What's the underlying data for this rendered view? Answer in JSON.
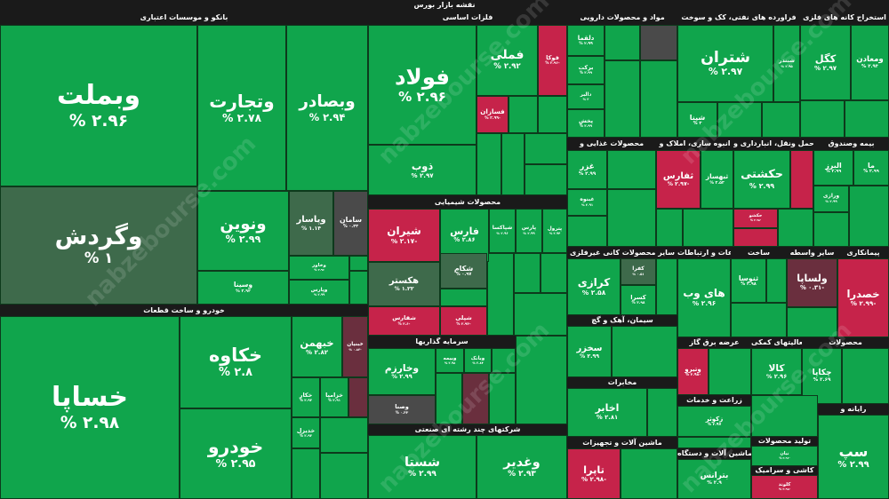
{
  "header": {
    "title": "نقشه بازار بورس"
  },
  "watermark": "nabzebourse.com",
  "sectors": [
    {
      "name": "بانکو و موسسات اعتباری",
      "tiles": [
        {
          "name": "وبملت",
          "change": "۲.۹۶ %"
        },
        {
          "name": "وگردش",
          "change": "۱ %"
        },
        {
          "name": "وتجارت",
          "change": "۲.۷۸ %"
        },
        {
          "name": "وبصادر",
          "change": "۲.۹۴ %"
        },
        {
          "name": "ونوین",
          "change": "۲.۹۹ %"
        },
        {
          "name": "وسینا",
          "change": "۲.۹۳ %"
        },
        {
          "name": "وپاسار",
          "change": "۱.۱۴ %"
        },
        {
          "name": "سامان",
          "change": "۰.۴۳ %"
        },
        {
          "name": "وخاور",
          "change": "۲.۹۶ %"
        },
        {
          "name": "وپارس",
          "change": "۲.۹۹ %"
        }
      ]
    },
    {
      "name": "خودرو و ساخت قطعات",
      "tiles": [
        {
          "name": "خساپا",
          "change": "۲.۹۸ %"
        },
        {
          "name": "خکاوه",
          "change": "۲.۸ %"
        },
        {
          "name": "خودرو",
          "change": "۲.۹۵ %"
        },
        {
          "name": "خبهمن",
          "change": "۲.۸۲ %"
        },
        {
          "name": "خبنیان",
          "change": "-۰.۸۳ %"
        },
        {
          "name": "خکار",
          "change": "۲.۹۳ %"
        },
        {
          "name": "خزامیا",
          "change": "۲.۹۱ %"
        },
        {
          "name": "خدیزل",
          "change": "۲.۹۳ %"
        }
      ]
    },
    {
      "name": "فلزات اساسی",
      "tiles": [
        {
          "name": "فولاد",
          "change": "۲.۹۶ %"
        },
        {
          "name": "ذوب",
          "change": "۲.۹۷ %"
        },
        {
          "name": "فملی",
          "change": "۲.۹۲ %"
        },
        {
          "name": "فوکا",
          "change": "-۲.۹۶ %"
        },
        {
          "name": "فسازان",
          "change": "-۲.۹۹ %"
        }
      ]
    },
    {
      "name": "محصولات شیمیایی",
      "tiles": [
        {
          "name": "شیران",
          "change": "-۲.۱۷ %"
        },
        {
          "name": "فارس",
          "change": "۲.۸۶ %"
        },
        {
          "name": "شپاکسا",
          "change": "۲.۹۶ %"
        },
        {
          "name": "پارس",
          "change": "۲.۹۹ %"
        },
        {
          "name": "پترول",
          "change": "۲.۹۴ %"
        },
        {
          "name": "هکستر",
          "change": "۱.۲۲ %"
        },
        {
          "name": "شکام",
          "change": "۰.۹۷ %"
        },
        {
          "name": "شفارس",
          "change": "-۲.۶ %"
        },
        {
          "name": "شپلی",
          "change": "-۲.۹۴ %"
        }
      ]
    },
    {
      "name": "سرمایه گذاریها",
      "tiles": [
        {
          "name": "وخارزم",
          "change": "۲.۹۹ %"
        },
        {
          "name": "وصنا",
          "change": "۰.۳۳ %"
        },
        {
          "name": "وبیمه",
          "change": "۲.۹۸ %"
        },
        {
          "name": "وبانک",
          "change": "۲.۸۴ %"
        }
      ]
    },
    {
      "name": "شرکتهای چند رشته ای صنعتی",
      "tiles": [
        {
          "name": "شستا",
          "change": "۲.۹۹ %"
        },
        {
          "name": "وغدیر",
          "change": "۲.۹۳ %"
        }
      ]
    },
    {
      "name": "مواد و محصولات دارویی",
      "tiles": [
        {
          "name": "دلقما",
          "change": "۲.۹۹ %"
        },
        {
          "name": "برکت",
          "change": "۲.۹۹ %"
        },
        {
          "name": "دالبر",
          "change": "۳ %"
        },
        {
          "name": "پخش",
          "change": "۲.۹۹ %"
        }
      ]
    },
    {
      "name": "فراورده های نفتی، کک و سوخت",
      "tiles": [
        {
          "name": "شتران",
          "change": "۲.۹۷ %"
        },
        {
          "name": "شبندر",
          "change": "۲.۹۵ %"
        },
        {
          "name": "شپنا",
          "change": "۳ %"
        }
      ]
    },
    {
      "name": "استخراج کانه های فلزی",
      "tiles": [
        {
          "name": "کگل",
          "change": "۲.۹۷ %"
        },
        {
          "name": "ومعادن",
          "change": "۲.۹۳ %"
        }
      ]
    },
    {
      "name": "محصولات غذایی و",
      "tiles": [
        {
          "name": "غزر",
          "change": "۲.۹۹ %"
        },
        {
          "name": "غبنوه",
          "change": "۲.۹۱ %"
        }
      ]
    },
    {
      "name": "انبوه سازی، املاک و",
      "tiles": [
        {
          "name": "ثفارس",
          "change": "-۲.۹۷ %"
        },
        {
          "name": "ثبهساز",
          "change": "۲.۵۳ %"
        }
      ]
    },
    {
      "name": "حمل ونقل، انبارداری و",
      "tiles": [
        {
          "name": "حکشتی",
          "change": "۲.۹۹ %"
        },
        {
          "name": "حکشو",
          "change": "-۲.۹۸ %"
        }
      ]
    },
    {
      "name": "بیمه وصندوق",
      "tiles": [
        {
          "name": "البرز",
          "change": "۲.۹۹ %"
        },
        {
          "name": "ما",
          "change": "۲.۹۹ %"
        },
        {
          "name": "ورازی",
          "change": "۲.۹۹ %"
        }
      ]
    },
    {
      "name": "سایر محصولات کانی غیرفلزی",
      "tiles": [
        {
          "name": "کرازی",
          "change": "۲.۵۸ %"
        },
        {
          "name": "کفرا",
          "change": "۰.۵۱ %"
        },
        {
          "name": "کسرا",
          "change": "۲.۹۸ %"
        }
      ]
    },
    {
      "name": "اطلاعات و ارتباطات",
      "tiles": [
        {
          "name": "های وب",
          "change": "۲.۹۶ %"
        }
      ]
    },
    {
      "name": "ساخت",
      "tiles": [
        {
          "name": "ثنوسا",
          "change": "۲.۹۸ %"
        }
      ]
    },
    {
      "name": "سایر واسطه",
      "tiles": [
        {
          "name": "ولساپا",
          "change": "-۰.۳۱ %"
        }
      ]
    },
    {
      "name": "پیمانکاری",
      "tiles": [
        {
          "name": "خصدرا",
          "change": "-۲.۹۹ %"
        }
      ]
    },
    {
      "name": "سیمان، آهک و گچ",
      "tiles": [
        {
          "name": "سخزر",
          "change": "۲.۹۹ %"
        }
      ]
    },
    {
      "name": "مخابرات",
      "tiles": [
        {
          "name": "اخابر",
          "change": "۲.۸۱ %"
        }
      ]
    },
    {
      "name": "ماشین آلات و تجهیزات",
      "tiles": [
        {
          "name": "تاپرا",
          "change": "-۲.۹۸ %"
        }
      ]
    },
    {
      "name": "عرضه برق گاز",
      "tiles": [
        {
          "name": "وتیرو",
          "change": "-۲.۹۸ %"
        }
      ]
    },
    {
      "name": "فعالیتهای کمکی",
      "tiles": [
        {
          "name": "کالا",
          "change": "۲.۹۶ %"
        }
      ]
    },
    {
      "name": "محصولات",
      "tiles": [
        {
          "name": "چکاپا",
          "change": "۲.۶۹ %"
        }
      ]
    },
    {
      "name": "زراعت و خدمات",
      "tiles": [
        {
          "name": "زکوثر",
          "change": "۲.۹۷ %"
        }
      ]
    },
    {
      "name": "ماشین آلات و دستگاه",
      "tiles": [
        {
          "name": "بترانس",
          "change": "۲.۹ %"
        }
      ]
    },
    {
      "name": "رایانه و",
      "tiles": [
        {
          "name": "سپ",
          "change": "۲.۹۹ %"
        }
      ]
    },
    {
      "name": "تولید محصولات",
      "tiles": [
        {
          "name": "نیان",
          "change": "-۲.۹۶ %"
        }
      ]
    },
    {
      "name": "کاشی و سرامیک",
      "tiles": [
        {
          "name": "کلوند",
          "change": "-۲.۹۸ %"
        }
      ]
    }
  ]
}
